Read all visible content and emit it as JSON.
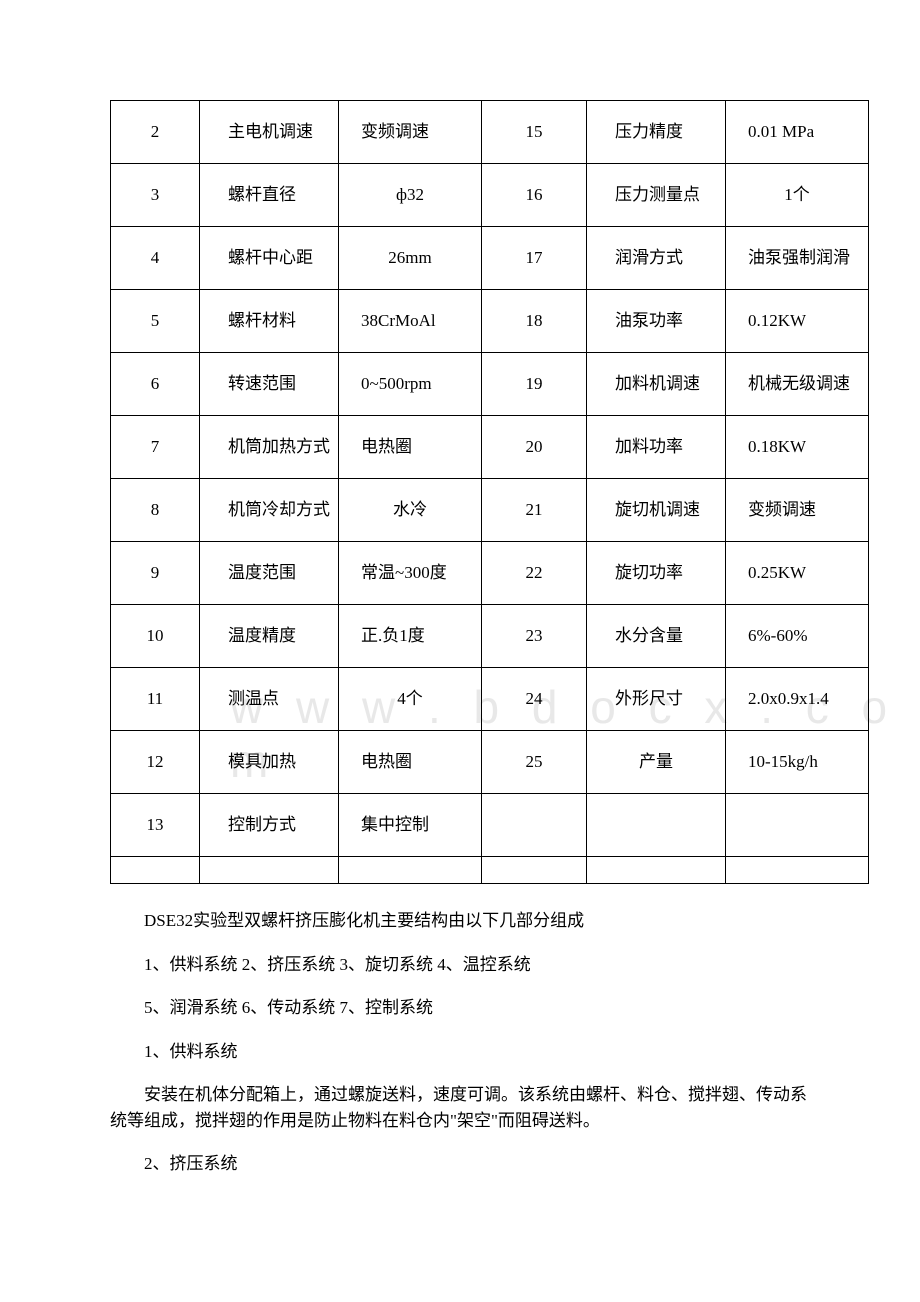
{
  "table": {
    "rows": [
      {
        "n1": "2",
        "l1": "主电机调速",
        "v1": "变频调速",
        "n2": "15",
        "l2": "压力精度",
        "v2": "0.01 MPa"
      },
      {
        "n1": "3",
        "l1": "螺杆直径",
        "v1": "ф32",
        "n2": "16",
        "l2": "压力测量点",
        "v2": "1个",
        "v2_center": true,
        "v1_center": true
      },
      {
        "n1": "4",
        "l1": "螺杆中心距",
        "v1": "26mm",
        "n2": "17",
        "l2": "润滑方式",
        "v2": "油泵强制润滑",
        "v1_center": true
      },
      {
        "n1": "5",
        "l1": "螺杆材料",
        "v1": "38CrMoAl",
        "n2": "18",
        "l2": "油泵功率",
        "v2": "0.12KW"
      },
      {
        "n1": "6",
        "l1": "转速范围",
        "v1": "0~500rpm",
        "n2": "19",
        "l2": "加料机调速",
        "v2": "机械无级调速"
      },
      {
        "n1": "7",
        "l1": "机筒加热方式",
        "v1": "电热圈",
        "n2": "20",
        "l2": "加料功率",
        "v2": "0.18KW"
      },
      {
        "n1": "8",
        "l1": "机筒冷却方式",
        "v1": "水冷",
        "n2": "21",
        "l2": "旋切机调速",
        "v2": "变频调速",
        "v1_center": true
      },
      {
        "n1": "9",
        "l1": "温度范围",
        "v1": "常温~300度",
        "n2": "22",
        "l2": "旋切功率",
        "v2": "0.25KW"
      },
      {
        "n1": "10",
        "l1": "温度精度",
        "v1": "正.负1度",
        "n2": "23",
        "l2": "水分含量",
        "v2": "6%-60%"
      },
      {
        "n1": "11",
        "l1": "测温点",
        "v1": "4个",
        "n2": "24",
        "l2": "外形尺寸",
        "v2": "2.0x0.9x1.4",
        "v1_center": true
      },
      {
        "n1": "12",
        "l1": "模具加热",
        "v1": "电热圈",
        "n2": "25",
        "l2": "产量",
        "v2": "10-15kg/h",
        "l2_center": true
      },
      {
        "n1": "13",
        "l1": "控制方式",
        "v1": "集中控制",
        "n2": "",
        "l2": "",
        "v2": ""
      }
    ]
  },
  "paragraphs": {
    "p1": "DSE32实验型双螺杆挤压膨化机主要结构由以下几部分组成",
    "p2": "1、供料系统 2、挤压系统 3、旋切系统 4、温控系统",
    "p3": "5、润滑系统 6、传动系统 7、控制系统",
    "p4": "1、供料系统",
    "p5": "安装在机体分配箱上，通过螺旋送料，速度可调。该系统由螺杆、料仓、搅拌翅、传动系统等组成，搅拌翅的作用是防止物料在料仓内\"架空\"而阻碍送料。",
    "p6": "2、挤压系统"
  },
  "watermark_text": "w w w . b d o c x . c o m"
}
